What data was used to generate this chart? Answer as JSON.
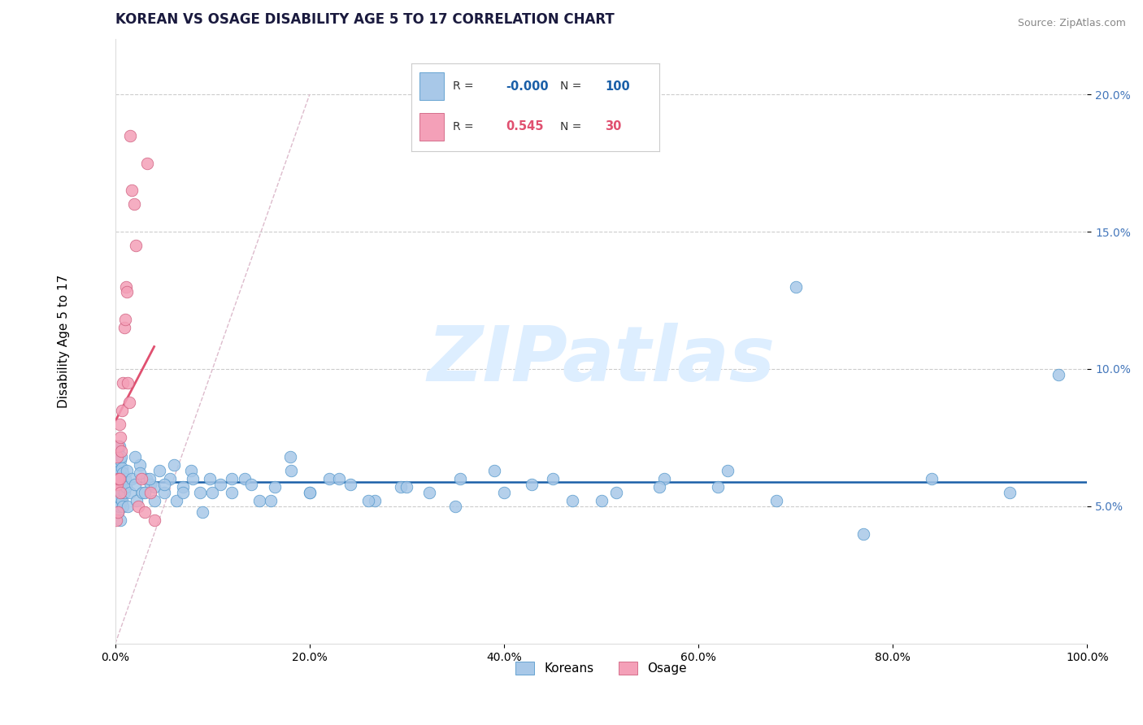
{
  "title": "KOREAN VS OSAGE DISABILITY AGE 5 TO 17 CORRELATION CHART",
  "source_text": "Source: ZipAtlas.com",
  "ylabel": "Disability Age 5 to 17",
  "xlim": [
    0,
    1.0
  ],
  "ylim": [
    0,
    0.22
  ],
  "xticks": [
    0.0,
    0.2,
    0.4,
    0.6,
    0.8,
    1.0
  ],
  "xtick_labels": [
    "0.0%",
    "20.0%",
    "40.0%",
    "60.0%",
    "80.0%",
    "100.0%"
  ],
  "yticks": [
    0.05,
    0.1,
    0.15,
    0.2
  ],
  "ytick_labels": [
    "5.0%",
    "10.0%",
    "15.0%",
    "20.0%"
  ],
  "korean_R": "-0.000",
  "korean_N": "100",
  "osage_R": "0.545",
  "osage_N": "30",
  "blue_scatter_color": "#a8c8e8",
  "blue_edge_color": "#5599cc",
  "pink_scatter_color": "#f4a0b8",
  "pink_edge_color": "#d06080",
  "blue_line_color": "#1a5fa8",
  "pink_line_color": "#e05070",
  "diag_line_color": "#ddbbcc",
  "ytick_color": "#4477bb",
  "watermark_color": "#ddeeff",
  "title_color": "#1a1a3e",
  "source_color": "#888888",
  "legend_border_color": "#cccccc",
  "korean_x": [
    0.001,
    0.001,
    0.001,
    0.002,
    0.002,
    0.002,
    0.002,
    0.003,
    0.003,
    0.003,
    0.003,
    0.003,
    0.004,
    0.004,
    0.004,
    0.004,
    0.005,
    0.005,
    0.005,
    0.005,
    0.006,
    0.006,
    0.006,
    0.007,
    0.007,
    0.007,
    0.008,
    0.008,
    0.009,
    0.01,
    0.011,
    0.012,
    0.013,
    0.015,
    0.017,
    0.02,
    0.022,
    0.025,
    0.028,
    0.032,
    0.036,
    0.04,
    0.045,
    0.05,
    0.056,
    0.063,
    0.07,
    0.078,
    0.087,
    0.097,
    0.108,
    0.12,
    0.133,
    0.148,
    0.164,
    0.181,
    0.2,
    0.22,
    0.242,
    0.267,
    0.294,
    0.323,
    0.355,
    0.39,
    0.428,
    0.47,
    0.515,
    0.565,
    0.62,
    0.68,
    0.02,
    0.025,
    0.03,
    0.035,
    0.04,
    0.05,
    0.06,
    0.07,
    0.08,
    0.09,
    0.1,
    0.12,
    0.14,
    0.16,
    0.18,
    0.2,
    0.23,
    0.26,
    0.3,
    0.35,
    0.4,
    0.45,
    0.5,
    0.56,
    0.63,
    0.7,
    0.77,
    0.84,
    0.92,
    0.97
  ],
  "korean_y": [
    0.06,
    0.055,
    0.065,
    0.058,
    0.062,
    0.068,
    0.052,
    0.06,
    0.055,
    0.07,
    0.048,
    0.065,
    0.057,
    0.063,
    0.05,
    0.072,
    0.058,
    0.053,
    0.067,
    0.045,
    0.06,
    0.055,
    0.068,
    0.052,
    0.058,
    0.064,
    0.05,
    0.062,
    0.055,
    0.06,
    0.057,
    0.063,
    0.05,
    0.055,
    0.06,
    0.058,
    0.052,
    0.065,
    0.055,
    0.06,
    0.058,
    0.057,
    0.063,
    0.055,
    0.06,
    0.052,
    0.057,
    0.063,
    0.055,
    0.06,
    0.058,
    0.055,
    0.06,
    0.052,
    0.057,
    0.063,
    0.055,
    0.06,
    0.058,
    0.052,
    0.057,
    0.055,
    0.06,
    0.063,
    0.058,
    0.052,
    0.055,
    0.06,
    0.057,
    0.052,
    0.068,
    0.062,
    0.055,
    0.06,
    0.052,
    0.058,
    0.065,
    0.055,
    0.06,
    0.048,
    0.055,
    0.06,
    0.058,
    0.052,
    0.068,
    0.055,
    0.06,
    0.052,
    0.057,
    0.05,
    0.055,
    0.06,
    0.052,
    0.057,
    0.063,
    0.13,
    0.04,
    0.06,
    0.055,
    0.098
  ],
  "osage_x": [
    0.001,
    0.001,
    0.002,
    0.002,
    0.003,
    0.003,
    0.003,
    0.004,
    0.004,
    0.005,
    0.005,
    0.006,
    0.007,
    0.008,
    0.009,
    0.01,
    0.011,
    0.012,
    0.013,
    0.014,
    0.015,
    0.017,
    0.019,
    0.021,
    0.024,
    0.027,
    0.03,
    0.033,
    0.036,
    0.04
  ],
  "osage_y": [
    0.058,
    0.045,
    0.068,
    0.058,
    0.06,
    0.048,
    0.072,
    0.08,
    0.06,
    0.075,
    0.055,
    0.07,
    0.085,
    0.095,
    0.115,
    0.118,
    0.13,
    0.128,
    0.095,
    0.088,
    0.185,
    0.165,
    0.16,
    0.145,
    0.05,
    0.06,
    0.048,
    0.175,
    0.055,
    0.045
  ],
  "title_fontsize": 12,
  "axis_label_fontsize": 11,
  "tick_fontsize": 10,
  "source_fontsize": 9
}
